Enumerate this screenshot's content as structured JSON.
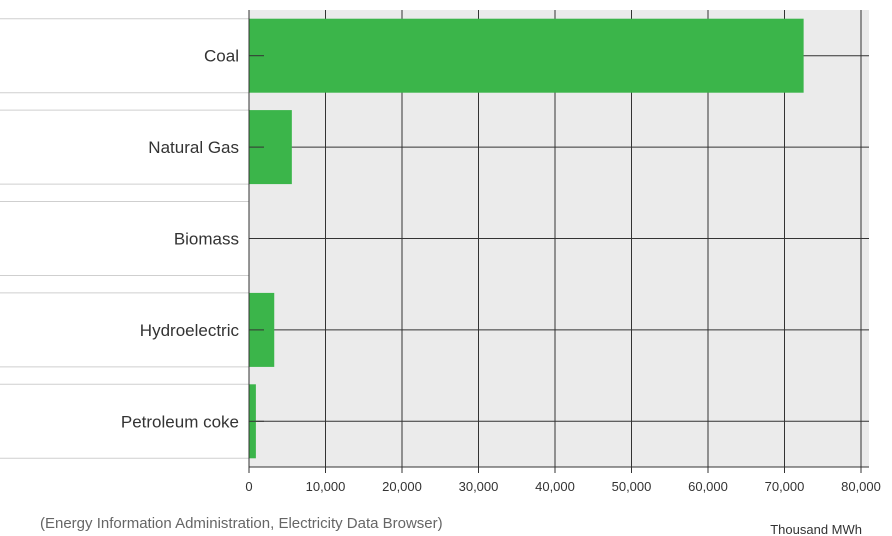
{
  "chart_data": {
    "type": "bar",
    "orientation": "horizontal",
    "categories": [
      "Coal",
      "Natural Gas",
      "Biomass",
      "Hydroelectric",
      "Petroleum coke"
    ],
    "values": [
      72500,
      5600,
      0,
      3300,
      900
    ],
    "x_ticks": [
      "0",
      "10,000",
      "20,000",
      "30,000",
      "40,000",
      "50,000",
      "60,000",
      "70,000",
      "80,000"
    ],
    "xlim": [
      0,
      80000
    ],
    "unit_label": "Thousand MWh",
    "source": "(Energy Information Administration, Electricity Data Browser)",
    "grid": true,
    "colors": {
      "bar": "#3bb54a",
      "plot_bg": "#ebebeb",
      "grid": "#333333"
    }
  }
}
